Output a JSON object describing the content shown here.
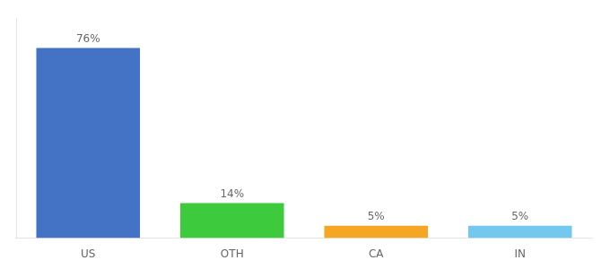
{
  "chart_data": {
    "type": "bar",
    "categories": [
      "US",
      "OTH",
      "CA",
      "IN"
    ],
    "values": [
      76,
      14,
      5,
      5
    ],
    "value_labels": [
      "76%",
      "14%",
      "5%",
      "5%"
    ],
    "colors": [
      "#4472c4",
      "#3dca3d",
      "#f5a623",
      "#74c8f0"
    ],
    "ylim": [
      0,
      88
    ],
    "grid": false,
    "tick_labels": "x",
    "data_labels": true
  }
}
